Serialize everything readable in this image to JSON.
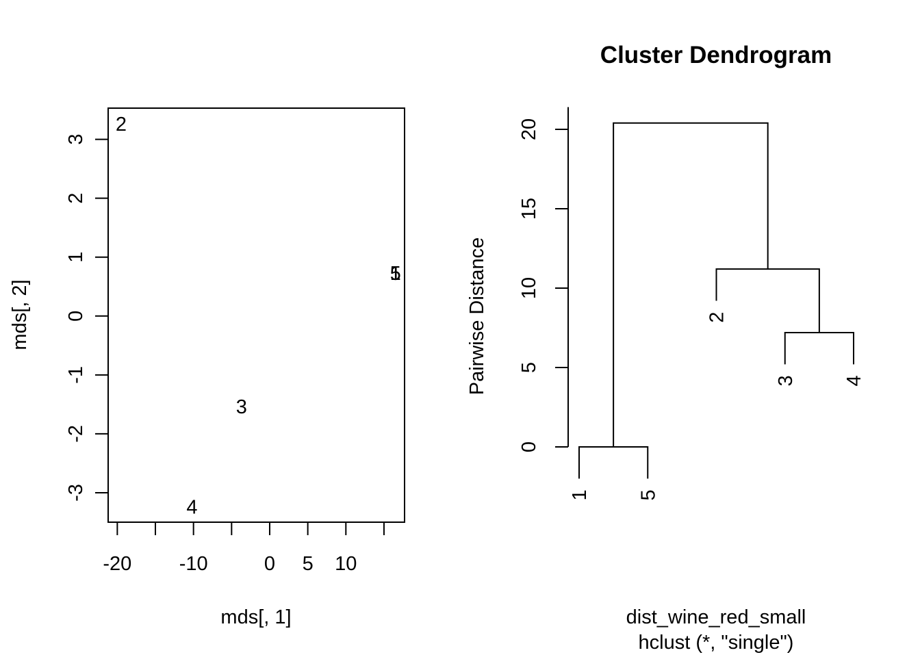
{
  "chart_data": [
    {
      "type": "scatter",
      "title": "",
      "xlabel": "mds[, 1]",
      "ylabel": "mds[, 2]",
      "xlim": [
        -21.2,
        17.7
      ],
      "ylim": [
        -3.5,
        3.53
      ],
      "xticks": [
        -20,
        -15,
        -10,
        -5,
        0,
        5,
        10,
        15
      ],
      "xtick_labels": [
        "-20",
        "",
        "-10",
        "",
        "0",
        "5",
        "10",
        ""
      ],
      "yticks": [
        3,
        2,
        1,
        0,
        -1,
        -2,
        -3
      ],
      "ytick_labels": [
        "3",
        "2",
        "1",
        "0",
        "-1",
        "-2",
        "-3"
      ],
      "points": [
        {
          "label": "1",
          "x": 16.5,
          "y": 0.72
        },
        {
          "label": "2",
          "x": -19.5,
          "y": 3.25
        },
        {
          "label": "3",
          "x": -3.7,
          "y": -1.55
        },
        {
          "label": "4",
          "x": -10.2,
          "y": -3.25
        },
        {
          "label": "5",
          "x": 16.5,
          "y": 0.72
        }
      ]
    },
    {
      "type": "dendrogram",
      "title": "Cluster Dendrogram",
      "ylabel": "Pairwise Distance",
      "xlabel": "dist_wine_red_small",
      "sub": "hclust (*, \"single\")",
      "ylim": [
        0,
        21.4
      ],
      "yticks": [
        0,
        5,
        10,
        15,
        20
      ],
      "ytick_labels": [
        "0",
        "5",
        "10",
        "15",
        "20"
      ],
      "leaf_order": [
        "1",
        "5",
        "2",
        "3",
        "4"
      ],
      "merges": [
        {
          "left": "1",
          "right": "5",
          "height": 0
        },
        {
          "left": "3",
          "right": "4",
          "height": 7.2
        },
        {
          "left": "2",
          "right": "[3,4]",
          "height": 11.2
        },
        {
          "left": "[1,5]",
          "right": "[2,3,4]",
          "height": 20.4
        }
      ],
      "leaf_heights": {
        "1": 0,
        "5": 0,
        "2": 11.2,
        "3": 7.2,
        "4": 7.2
      }
    }
  ]
}
